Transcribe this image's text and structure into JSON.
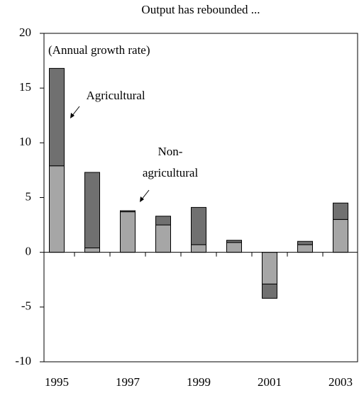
{
  "chart_data": {
    "type": "stacked_bar",
    "title": "Output has rebounded ...",
    "subtitle": "(Annual growth rate)",
    "categories": [
      "1995",
      null,
      "1997",
      null,
      "1999",
      null,
      "2001",
      null,
      "2003"
    ],
    "series": [
      {
        "name": "Non-agricultural",
        "color": "#a6a6a6",
        "values": [
          7.9,
          0.4,
          3.7,
          2.5,
          0.7,
          0.9,
          -2.9,
          0.7,
          3.0
        ]
      },
      {
        "name": "Agricultural",
        "color": "#707070",
        "values": [
          8.9,
          6.9,
          0.1,
          0.8,
          3.4,
          0.2,
          -1.3,
          0.3,
          1.5
        ]
      }
    ],
    "ylim": [
      -10,
      20
    ],
    "yticks": [
      -10,
      -5,
      0,
      5,
      10,
      15,
      20
    ]
  }
}
